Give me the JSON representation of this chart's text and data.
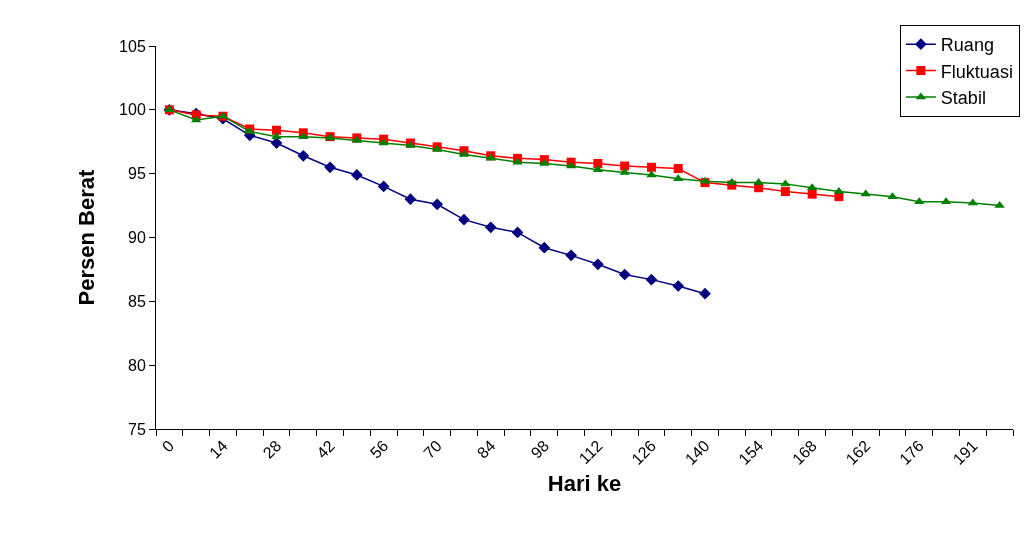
{
  "chart_data": {
    "type": "line",
    "xlabel": "Hari ke",
    "ylabel": "Persen Berat",
    "categories": [
      "0",
      null,
      "14",
      null,
      "28",
      null,
      "42",
      null,
      "56",
      null,
      "70",
      null,
      "84",
      null,
      "98",
      null,
      "112",
      null,
      "126",
      null,
      "140",
      null,
      "154",
      null,
      "168",
      null,
      "162",
      null,
      "176",
      null,
      "191",
      null
    ],
    "series": [
      {
        "name": "Ruang",
        "color": "#000080",
        "marker": "diamond",
        "values": [
          100,
          99.7,
          99.3,
          98.0,
          97.4,
          96.4,
          95.5,
          94.9,
          94.0,
          93.0,
          92.6,
          91.4,
          90.8,
          90.4,
          89.2,
          88.6,
          87.9,
          87.1,
          86.7,
          86.2,
          85.6,
          null,
          null,
          null,
          null,
          null,
          null,
          null,
          null,
          null,
          null,
          null
        ]
      },
      {
        "name": "Fluktuasi",
        "color": "#ff0000",
        "marker": "square",
        "values": [
          100,
          99.6,
          99.5,
          98.5,
          98.4,
          98.2,
          97.9,
          97.8,
          97.7,
          97.4,
          97.1,
          96.8,
          96.4,
          96.2,
          96.1,
          95.9,
          95.8,
          95.6,
          95.5,
          95.4,
          94.3,
          94.1,
          93.9,
          93.6,
          93.4,
          93.2,
          null,
          null,
          null,
          null,
          null,
          null
        ]
      },
      {
        "name": "Stabil",
        "color": "#008000",
        "marker": "triangle",
        "values": [
          100,
          99.2,
          99.5,
          98.3,
          97.9,
          97.9,
          97.8,
          97.6,
          97.4,
          97.2,
          96.9,
          96.5,
          96.2,
          95.9,
          95.8,
          95.6,
          95.3,
          95.1,
          94.9,
          94.6,
          94.4,
          94.3,
          94.3,
          94.2,
          93.9,
          93.6,
          93.4,
          93.2,
          92.8,
          92.8,
          92.7,
          92.5
        ]
      }
    ],
    "ylim": [
      75,
      105
    ],
    "yticks": [
      75,
      80,
      85,
      90,
      95,
      100,
      105
    ],
    "legend": "top right"
  }
}
